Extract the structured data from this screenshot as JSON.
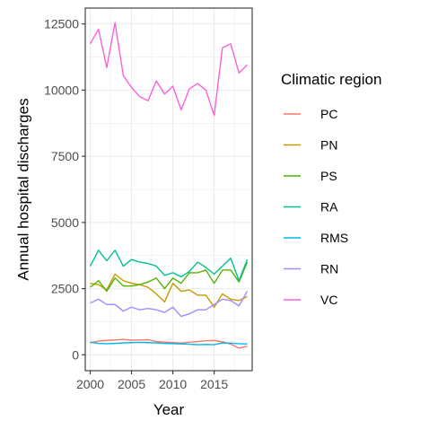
{
  "chart_data": {
    "type": "line",
    "xlabel": "Year",
    "ylabel": "Annual hospital discharges",
    "xlim": [
      1999.4,
      2019.6
    ],
    "ylim": [
      -600,
      13100
    ],
    "x_ticks": [
      2000,
      2005,
      2010,
      2015
    ],
    "y_ticks": [
      0,
      2500,
      5000,
      7500,
      10000,
      12500
    ],
    "grid": true,
    "legend_position": "right",
    "legend_title": "Climatic region",
    "x": [
      2000,
      2001,
      2002,
      2003,
      2004,
      2005,
      2006,
      2007,
      2008,
      2009,
      2010,
      2011,
      2012,
      2013,
      2014,
      2015,
      2016,
      2017,
      2018,
      2019
    ],
    "series": [
      {
        "name": "PC",
        "color": "#F8766D",
        "values": [
          450,
          520,
          540,
          560,
          580,
          550,
          560,
          570,
          500,
          480,
          460,
          440,
          480,
          500,
          530,
          540,
          490,
          400,
          250,
          320
        ]
      },
      {
        "name": "PN",
        "color": "#C49A00",
        "values": [
          2700,
          2650,
          2450,
          3050,
          2800,
          2700,
          2650,
          2550,
          2300,
          2000,
          2700,
          2400,
          2450,
          2250,
          2250,
          1800,
          2300,
          2100,
          2050,
          2200
        ]
      },
      {
        "name": "PS",
        "color": "#53B400",
        "values": [
          2550,
          2800,
          2400,
          2900,
          2600,
          2600,
          2650,
          2750,
          2900,
          2500,
          2900,
          2700,
          3100,
          3100,
          3200,
          2700,
          3200,
          3200,
          2750,
          3500
        ]
      },
      {
        "name": "RA",
        "color": "#00C094",
        "values": [
          3350,
          3950,
          3550,
          3950,
          3350,
          3600,
          3500,
          3450,
          3350,
          3000,
          3100,
          2950,
          3150,
          3500,
          3300,
          3050,
          3350,
          3650,
          2800,
          3600
        ]
      },
      {
        "name": "RMS",
        "color": "#00B6EB",
        "values": [
          480,
          430,
          420,
          430,
          450,
          460,
          470,
          460,
          450,
          430,
          420,
          410,
          400,
          380,
          390,
          380,
          450,
          440,
          420,
          410
        ]
      },
      {
        "name": "RN",
        "color": "#A58AFF",
        "values": [
          1950,
          2100,
          1900,
          1900,
          1650,
          1800,
          1700,
          1750,
          1700,
          1600,
          1800,
          1450,
          1550,
          1700,
          1700,
          1900,
          2100,
          2050,
          1850,
          2400
        ]
      },
      {
        "name": "VC",
        "color": "#FB61D7",
        "values": [
          11750,
          12300,
          10850,
          12550,
          10550,
          10100,
          9750,
          9600,
          10350,
          9850,
          10150,
          9250,
          10050,
          10250,
          10000,
          9050,
          11600,
          11750,
          10650,
          10950
        ]
      }
    ]
  }
}
